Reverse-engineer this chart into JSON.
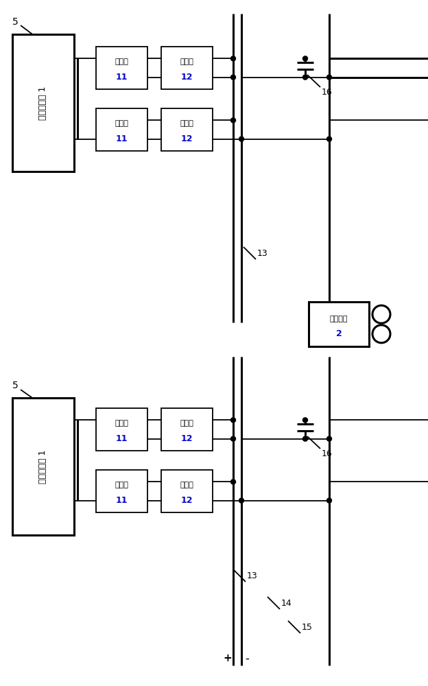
{
  "bg_color": "#ffffff",
  "line_color": "#000000",
  "text_color_blue": "#0a0acc",
  "label_traction": "牵引变电站 1",
  "label_transformer_cn": "变压器",
  "label_rectifier_cn": "整流器",
  "label_loco_cn": "电力机车",
  "label_5": "5",
  "label_11": "11",
  "label_12": "12",
  "label_13": "13",
  "label_14": "14",
  "label_15": "15",
  "label_16": "16",
  "label_2": "2",
  "label_plus": "+",
  "label_minus": "-",
  "figsize": [
    6.24,
    10.0
  ],
  "dpi": 100
}
